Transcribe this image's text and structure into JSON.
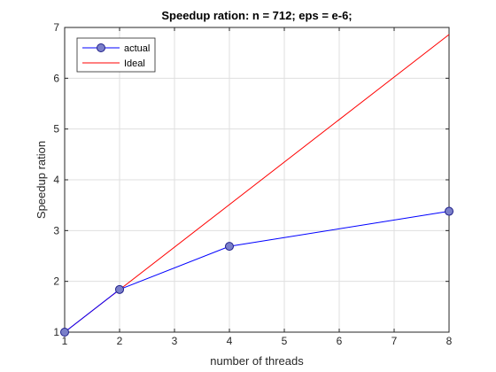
{
  "chart_data": {
    "type": "line",
    "title": "Speedup ration: n = 712; eps = e-6;",
    "xlabel": "number of threads",
    "ylabel": "Speedup ration",
    "xlim": [
      1,
      8
    ],
    "ylim": [
      1,
      7
    ],
    "xticks": [
      1,
      2,
      3,
      4,
      5,
      6,
      7,
      8
    ],
    "yticks": [
      1,
      2,
      3,
      4,
      5,
      6,
      7
    ],
    "grid": true,
    "legend_position": "top-left",
    "series": [
      {
        "name": "actual",
        "x": [
          1,
          2,
          4,
          8
        ],
        "y": [
          1.0,
          1.84,
          2.69,
          3.38
        ],
        "color": "#0000ff",
        "marker": "circle",
        "marker_fill": "#7a7fc9"
      },
      {
        "name": "Ideal",
        "x": [
          1,
          8
        ],
        "y": [
          1,
          6.86
        ],
        "color": "#ff0000",
        "marker": "none"
      }
    ]
  }
}
